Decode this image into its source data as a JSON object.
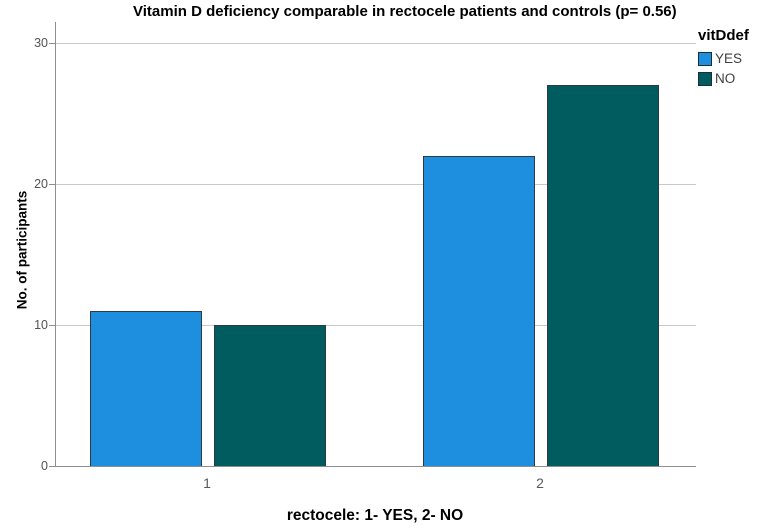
{
  "chart_data": {
    "type": "bar",
    "title": "Vitamin D deficiency comparable in rectocele patients and controls (p= 0.56)",
    "xlabel": "rectocele: 1- YES, 2- NO",
    "ylabel": "No. of participants",
    "categories": [
      "1",
      "2"
    ],
    "series": [
      {
        "name": "YES",
        "values": [
          11,
          22
        ],
        "color": "#1E8FDE"
      },
      {
        "name": "NO",
        "values": [
          10,
          27
        ],
        "color": "#015C5F"
      }
    ],
    "legend_title": "vitDdef",
    "yticks": [
      0,
      10,
      20,
      30
    ],
    "ylim": [
      0,
      31.5
    ],
    "grid": "horizontal-only",
    "legend_position": "top-right"
  },
  "colors": {
    "bar_border": "#2B3A44",
    "swatch_border": "#1D2D38",
    "gridline": "#C9C9C9",
    "axis": "#8E8E8E",
    "tick_text": "#525252",
    "title_text": "#000000"
  }
}
